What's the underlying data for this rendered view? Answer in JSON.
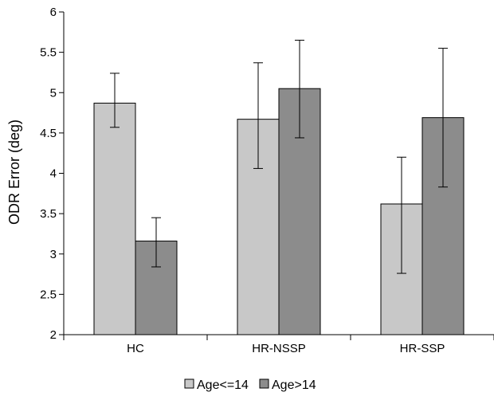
{
  "chart_data": {
    "type": "bar",
    "title": "",
    "xlabel": "",
    "ylabel": "ODR Error (deg)",
    "ylim": [
      2,
      6
    ],
    "yticks": [
      "2",
      "2.5",
      "3",
      "3.5",
      "4",
      "4.5",
      "5",
      "5.5",
      "6"
    ],
    "categories": [
      "HC",
      "HR-NSSP",
      "HR-SSP"
    ],
    "grid": false,
    "legend_position": "bottom",
    "series": [
      {
        "name": "Age<=14",
        "color": "#c8c8c8",
        "values": [
          4.87,
          4.67,
          3.62
        ],
        "error_low": [
          4.57,
          4.06,
          2.76
        ],
        "error_high": [
          5.24,
          5.37,
          4.2
        ]
      },
      {
        "name": "Age>14",
        "color": "#8c8c8c",
        "values": [
          3.16,
          5.05,
          4.69
        ],
        "error_low": [
          2.84,
          4.44,
          3.83
        ],
        "error_high": [
          3.45,
          5.65,
          5.55
        ]
      }
    ]
  }
}
